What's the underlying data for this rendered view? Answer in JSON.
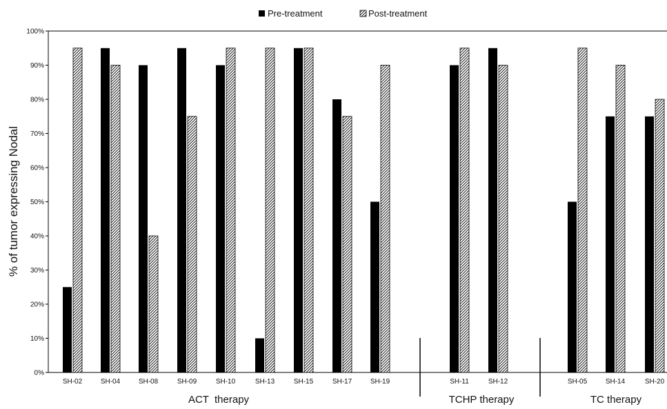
{
  "chart_data": {
    "type": "bar",
    "title": "",
    "ylabel": "% of tumor expressing Nodal",
    "xlabel": "",
    "ylim": [
      0,
      100
    ],
    "yticks": [
      "0%",
      "10%",
      "20%",
      "30%",
      "40%",
      "50%",
      "60%",
      "70%",
      "80%",
      "90%",
      "100%"
    ],
    "grid": false,
    "legend_position": "top-center",
    "categories": [
      "SH-02",
      "SH-04",
      "SH-08",
      "SH-09",
      "SH-10",
      "SH-13",
      "SH-15",
      "SH-17",
      "SH-19",
      "SH-11",
      "SH-12",
      "SH-05",
      "SH-14",
      "SH-20"
    ],
    "groups": [
      {
        "label": "ACT  therapy",
        "members": [
          "SH-02",
          "SH-04",
          "SH-08",
          "SH-09",
          "SH-10",
          "SH-13",
          "SH-15",
          "SH-17",
          "SH-19"
        ]
      },
      {
        "label": "TCHP therapy",
        "members": [
          "SH-11",
          "SH-12"
        ]
      },
      {
        "label": "TC therapy",
        "members": [
          "SH-05",
          "SH-14",
          "SH-20"
        ]
      }
    ],
    "series": [
      {
        "name": "Pre-treatment",
        "pattern": "solid",
        "color": "#000000",
        "values": [
          25,
          95,
          90,
          95,
          90,
          10,
          95,
          80,
          50,
          90,
          95,
          50,
          75,
          75
        ]
      },
      {
        "name": "Post-treatment",
        "pattern": "hatched",
        "color": "#000000",
        "values": [
          95,
          90,
          40,
          75,
          95,
          95,
          95,
          75,
          90,
          95,
          90,
          95,
          90,
          80
        ]
      }
    ]
  }
}
